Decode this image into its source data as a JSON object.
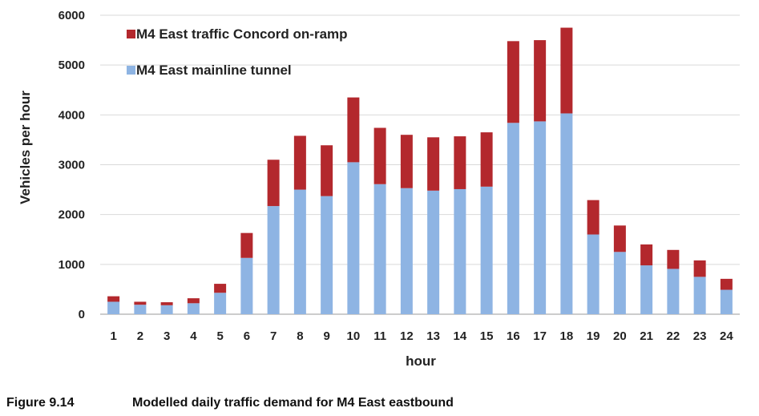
{
  "chart_data": {
    "type": "bar",
    "stacked": true,
    "categories": [
      "1",
      "2",
      "3",
      "4",
      "5",
      "6",
      "7",
      "8",
      "9",
      "10",
      "11",
      "12",
      "13",
      "14",
      "15",
      "16",
      "17",
      "18",
      "19",
      "20",
      "21",
      "22",
      "23",
      "24"
    ],
    "series": [
      {
        "name": "M4 East mainline tunnel",
        "color": "#8eb4e3",
        "values": [
          250,
          190,
          180,
          220,
          430,
          1130,
          2170,
          2500,
          2370,
          3050,
          2610,
          2530,
          2480,
          2510,
          2560,
          3840,
          3870,
          4030,
          1600,
          1250,
          980,
          910,
          750,
          490
        ]
      },
      {
        "name": "M4 East traffic Concord on-ramp",
        "color": "#b3282d",
        "values": [
          110,
          60,
          60,
          100,
          180,
          500,
          930,
          1080,
          1020,
          1300,
          1130,
          1070,
          1070,
          1060,
          1090,
          1640,
          1630,
          1720,
          690,
          530,
          420,
          380,
          330,
          220
        ]
      }
    ],
    "xlabel": "hour",
    "ylabel": "Vehicles per hour",
    "ylim": [
      0,
      6000
    ],
    "yticks": [
      0,
      1000,
      2000,
      3000,
      4000,
      5000,
      6000
    ],
    "grid": true,
    "legend_position": "top-left"
  },
  "caption": {
    "number": "Figure 9.14",
    "title": "Modelled daily traffic demand for M4 East eastbound"
  }
}
